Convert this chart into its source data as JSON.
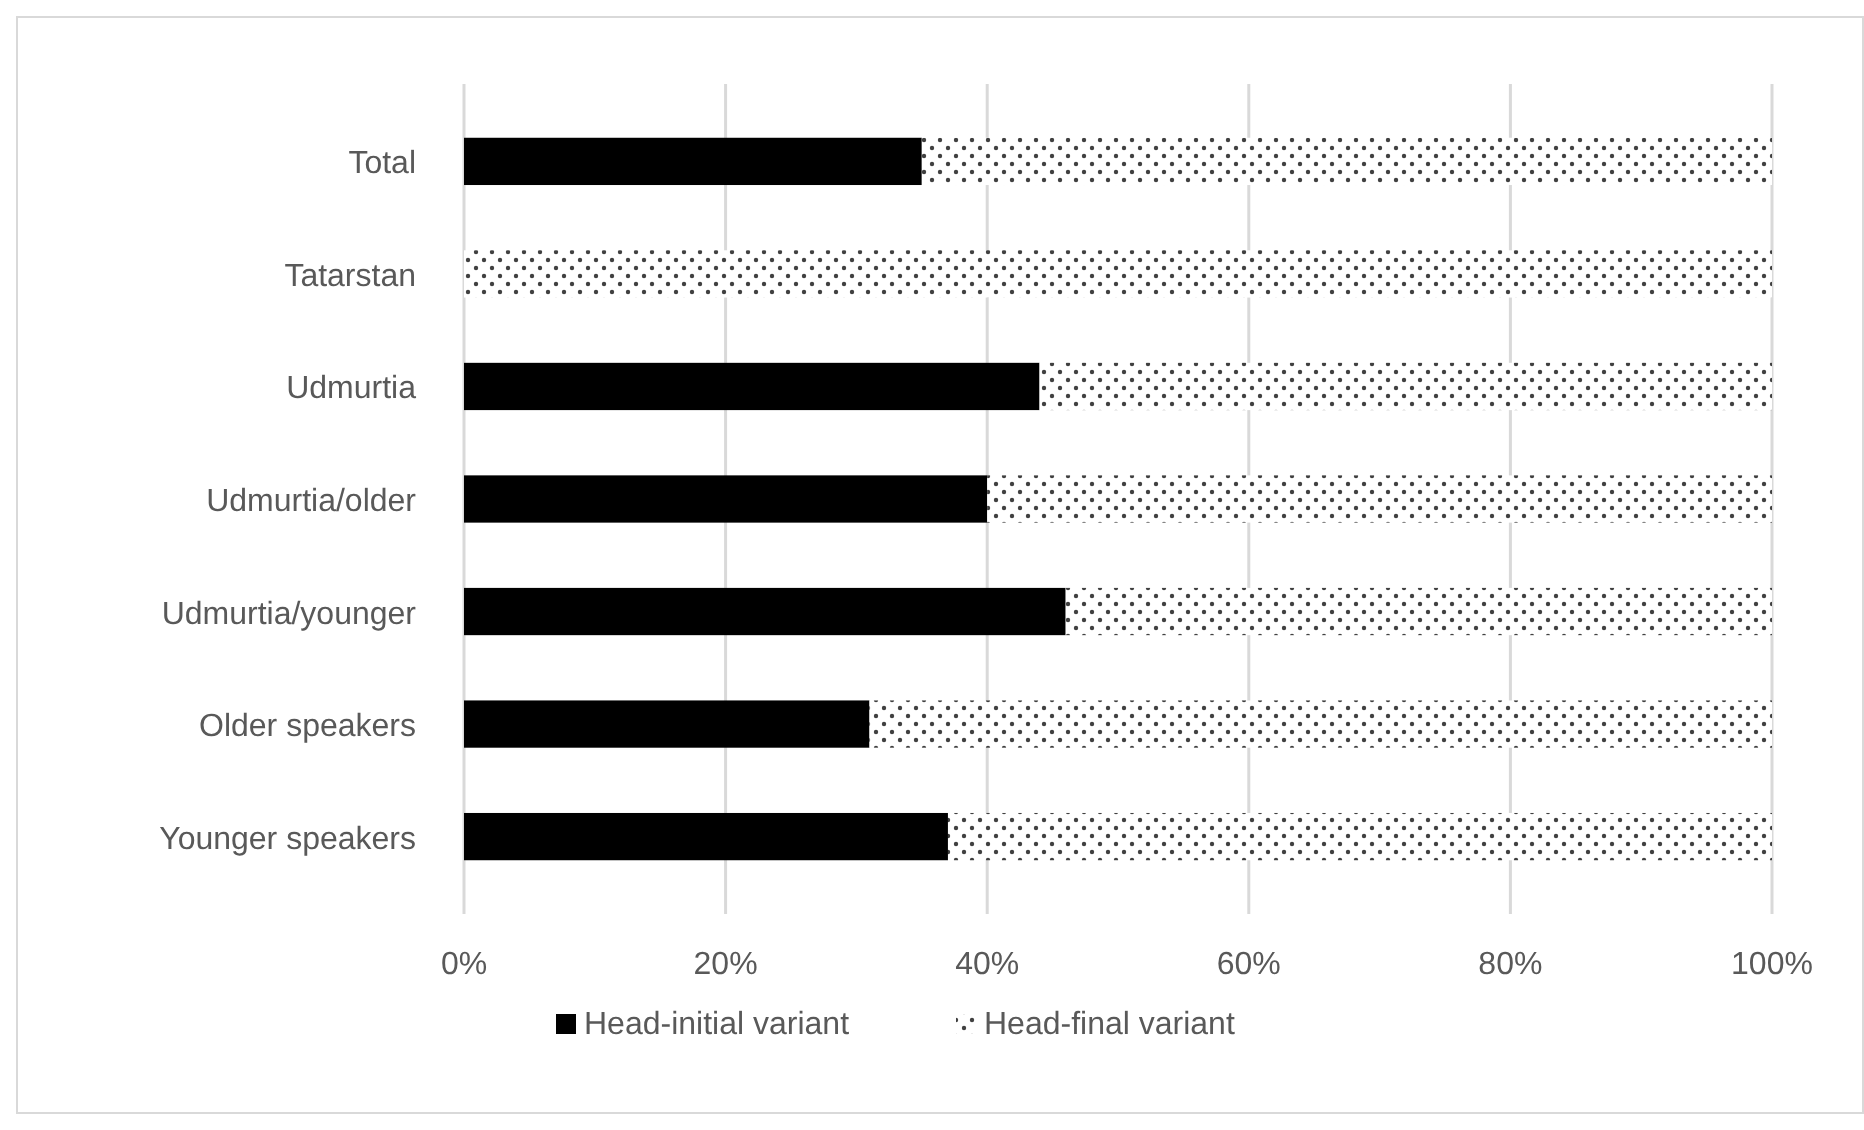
{
  "chart_data": {
    "type": "bar",
    "orientation": "horizontal",
    "stacked": true,
    "categories": [
      "Total",
      "Tatarstan",
      "Udmurtia",
      "Udmurtia/older",
      "Udmurtia/younger",
      "Older speakers",
      "Younger speakers"
    ],
    "series": [
      {
        "name": "Head-initial variant",
        "color": "#000000",
        "values": [
          35,
          0,
          44,
          40,
          46,
          31,
          37
        ]
      },
      {
        "name": "Head-final variant",
        "color": "#404040",
        "values": [
          65,
          100,
          56,
          60,
          54,
          69,
          63
        ]
      }
    ],
    "xlim": [
      0,
      100
    ],
    "xticks": [
      {
        "value": 0,
        "label": "0%"
      },
      {
        "value": 20,
        "label": "20%"
      },
      {
        "value": 40,
        "label": "40%"
      },
      {
        "value": 60,
        "label": "60%"
      },
      {
        "value": 80,
        "label": "80%"
      },
      {
        "value": 100,
        "label": "100%"
      }
    ],
    "grid": "x",
    "legend": "bottom"
  }
}
